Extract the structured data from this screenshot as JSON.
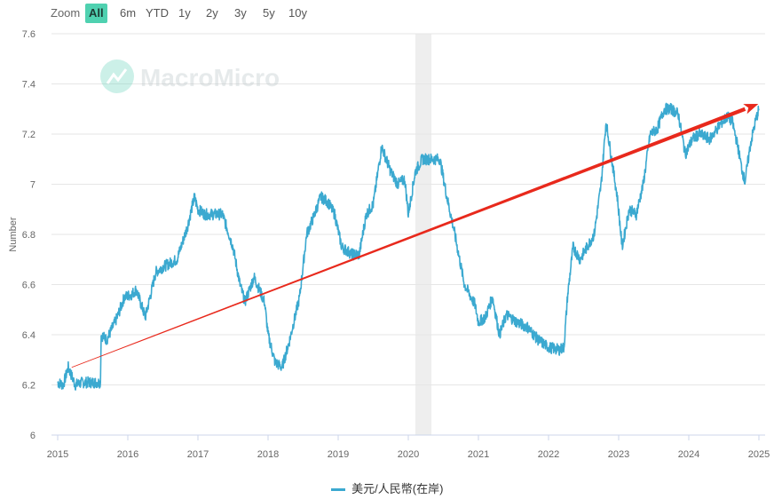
{
  "zoom": {
    "label": "Zoom",
    "buttons": [
      "All",
      "6m",
      "YTD",
      "1y",
      "2y",
      "3y",
      "5y",
      "10y"
    ],
    "active": "All"
  },
  "watermark": "MacroMicro",
  "colors": {
    "line": "#3ba9d0",
    "arrow": "#e8291c",
    "active": "#4fd1b0",
    "shade": "#eeeeee"
  },
  "chart_data": {
    "type": "line",
    "title": "",
    "xlabel": "",
    "ylabel": "Number",
    "ylim": [
      6,
      7.6
    ],
    "xlim": [
      2015.0,
      2025.0
    ],
    "yticks": [
      "6",
      "6.2",
      "6.4",
      "6.6",
      "6.8",
      "7",
      "7.2",
      "7.4",
      "7.6"
    ],
    "xticks": [
      "2015",
      "2016",
      "2017",
      "2018",
      "2019",
      "2020",
      "2021",
      "2022",
      "2023",
      "2024",
      "2025"
    ],
    "legend": "美元/人民幣(在岸)",
    "shaded_range": [
      2020.1,
      2020.33
    ],
    "trend_arrow": {
      "from": [
        2015.2,
        6.27
      ],
      "to": [
        2024.98,
        7.3
      ]
    },
    "series": [
      {
        "name": "美元/人民幣(在岸)",
        "x": [
          2015.0,
          2015.08,
          2015.15,
          2015.25,
          2015.35,
          2015.5,
          2015.61,
          2015.62,
          2015.7,
          2015.85,
          2015.95,
          2016.05,
          2016.12,
          2016.25,
          2016.4,
          2016.5,
          2016.7,
          2016.85,
          2016.95,
          2017.0,
          2017.1,
          2017.25,
          2017.35,
          2017.5,
          2017.6,
          2017.67,
          2017.8,
          2017.95,
          2018.0,
          2018.1,
          2018.2,
          2018.3,
          2018.45,
          2018.55,
          2018.65,
          2018.75,
          2018.85,
          2018.95,
          2019.05,
          2019.2,
          2019.3,
          2019.4,
          2019.5,
          2019.62,
          2019.75,
          2019.85,
          2019.95,
          2020.0,
          2020.1,
          2020.2,
          2020.3,
          2020.45,
          2020.55,
          2020.65,
          2020.8,
          2020.95,
          2021.0,
          2021.1,
          2021.2,
          2021.3,
          2021.4,
          2021.55,
          2021.7,
          2021.85,
          2022.0,
          2022.15,
          2022.22,
          2022.27,
          2022.35,
          2022.45,
          2022.55,
          2022.65,
          2022.75,
          2022.82,
          2022.9,
          2022.98,
          2023.05,
          2023.15,
          2023.25,
          2023.35,
          2023.45,
          2023.55,
          2023.65,
          2023.75,
          2023.85,
          2023.95,
          2024.05,
          2024.15,
          2024.3,
          2024.45,
          2024.55,
          2024.62,
          2024.7,
          2024.75,
          2024.8,
          2024.88,
          2024.95,
          2025.0
        ],
        "y": [
          6.21,
          6.2,
          6.27,
          6.2,
          6.21,
          6.21,
          6.21,
          6.4,
          6.38,
          6.47,
          6.55,
          6.56,
          6.58,
          6.47,
          6.65,
          6.67,
          6.7,
          6.83,
          6.95,
          6.9,
          6.88,
          6.88,
          6.88,
          6.75,
          6.6,
          6.53,
          6.63,
          6.53,
          6.4,
          6.29,
          6.27,
          6.37,
          6.55,
          6.8,
          6.87,
          6.95,
          6.93,
          6.88,
          6.75,
          6.72,
          6.72,
          6.88,
          6.92,
          7.15,
          7.05,
          7.0,
          7.02,
          6.88,
          7.05,
          7.1,
          7.1,
          7.1,
          6.95,
          6.82,
          6.6,
          6.52,
          6.45,
          6.47,
          6.55,
          6.4,
          6.48,
          6.45,
          6.43,
          6.38,
          6.35,
          6.34,
          6.35,
          6.55,
          6.75,
          6.7,
          6.75,
          6.8,
          7.0,
          7.25,
          7.1,
          6.95,
          6.75,
          6.9,
          6.88,
          7.0,
          7.2,
          7.22,
          7.3,
          7.3,
          7.28,
          7.12,
          7.18,
          7.2,
          7.18,
          7.24,
          7.27,
          7.25,
          7.15,
          7.07,
          7.01,
          7.16,
          7.25,
          7.3
        ]
      }
    ]
  }
}
